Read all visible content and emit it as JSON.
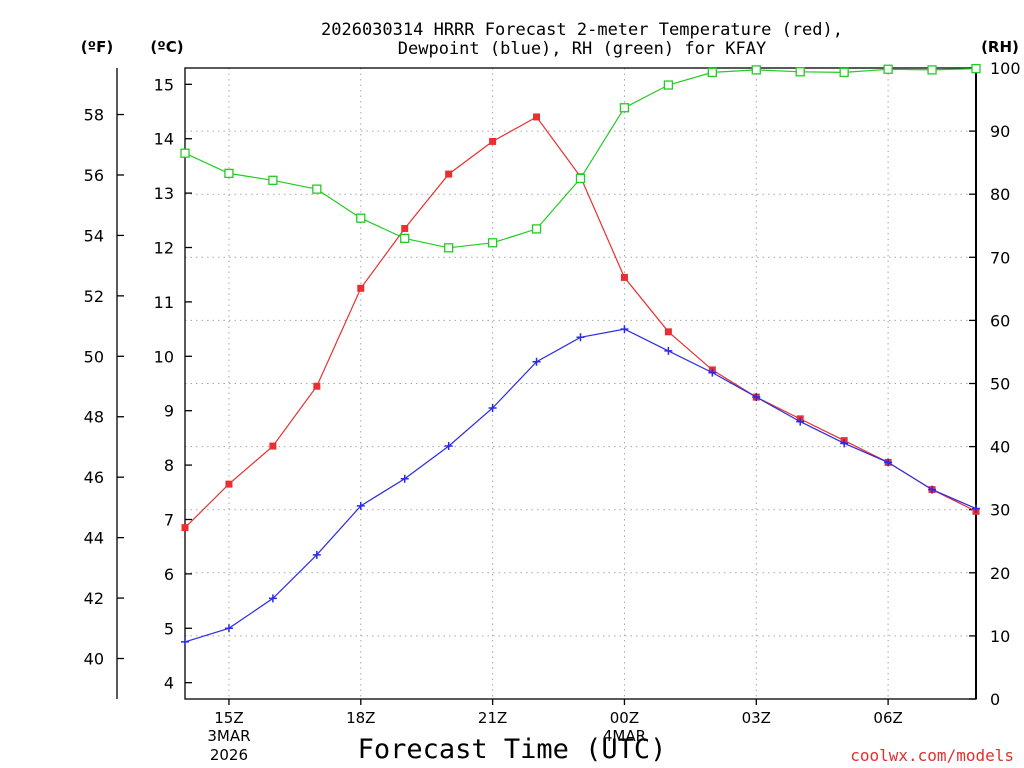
{
  "chart_data": {
    "type": "line",
    "title_line1": "2026030314 HRRR Forecast 2-meter Temperature (red),",
    "title_line2": "Dewpoint (blue), RH (green) for KFAY",
    "xlabel": "Forecast Time (UTC)",
    "watermark": "coolwx.com/models",
    "unit_f": "(ºF)",
    "unit_c": "(ºC)",
    "unit_rh": "(RH)",
    "x_hours": [
      14,
      15,
      16,
      17,
      18,
      19,
      20,
      21,
      22,
      23,
      24,
      25,
      26,
      27,
      28,
      29,
      30,
      31,
      32
    ],
    "xlim": [
      14,
      32
    ],
    "x_ticks": [
      {
        "hour": 15,
        "label": "15Z",
        "sub1": "3MAR",
        "sub2": "2026"
      },
      {
        "hour": 18,
        "label": "18Z",
        "sub1": "",
        "sub2": ""
      },
      {
        "hour": 21,
        "label": "21Z",
        "sub1": "",
        "sub2": ""
      },
      {
        "hour": 24,
        "label": "00Z",
        "sub1": "4MAR",
        "sub2": ""
      },
      {
        "hour": 27,
        "label": "03Z",
        "sub1": "",
        "sub2": ""
      },
      {
        "hour": 30,
        "label": "06Z",
        "sub1": "",
        "sub2": ""
      }
    ],
    "celsius_ylim": [
      3.7,
      15.3
    ],
    "celsius_ticks": [
      "4",
      "5",
      "6",
      "7",
      "8",
      "9",
      "10",
      "11",
      "12",
      "13",
      "14",
      "15"
    ],
    "fahrenheit_ticks": [
      "40",
      "42",
      "44",
      "46",
      "48",
      "50",
      "52",
      "54",
      "56",
      "58"
    ],
    "rh_ylim": [
      0,
      100
    ],
    "rh_ticks": [
      "0",
      "10",
      "20",
      "30",
      "40",
      "50",
      "60",
      "70",
      "80",
      "90",
      "100"
    ],
    "series": [
      {
        "name": "Temperature",
        "unit": "C",
        "color": "#e83030",
        "marker": "filled-square",
        "values": [
          6.85,
          7.65,
          8.35,
          9.45,
          11.25,
          12.35,
          13.35,
          13.95,
          14.4,
          13.3,
          11.45,
          10.45,
          9.75,
          9.25,
          8.85,
          8.45,
          8.05,
          7.55,
          7.15
        ]
      },
      {
        "name": "Dewpoint",
        "unit": "C",
        "color": "#2a2ae8",
        "marker": "plus",
        "values": [
          4.75,
          5.0,
          5.55,
          6.35,
          7.25,
          7.75,
          8.35,
          9.05,
          9.9,
          10.35,
          10.5,
          10.1,
          9.7,
          9.25,
          8.8,
          8.4,
          8.05,
          7.55,
          7.2
        ]
      },
      {
        "name": "Relative Humidity",
        "unit": "%",
        "color": "#22cc22",
        "marker": "open-square",
        "values": [
          86.5,
          83.3,
          82.2,
          80.8,
          76.2,
          73.0,
          71.5,
          72.3,
          74.5,
          82.5,
          93.7,
          97.3,
          99.3,
          99.7,
          99.4,
          99.3,
          99.8,
          99.7,
          99.9
        ]
      }
    ]
  }
}
